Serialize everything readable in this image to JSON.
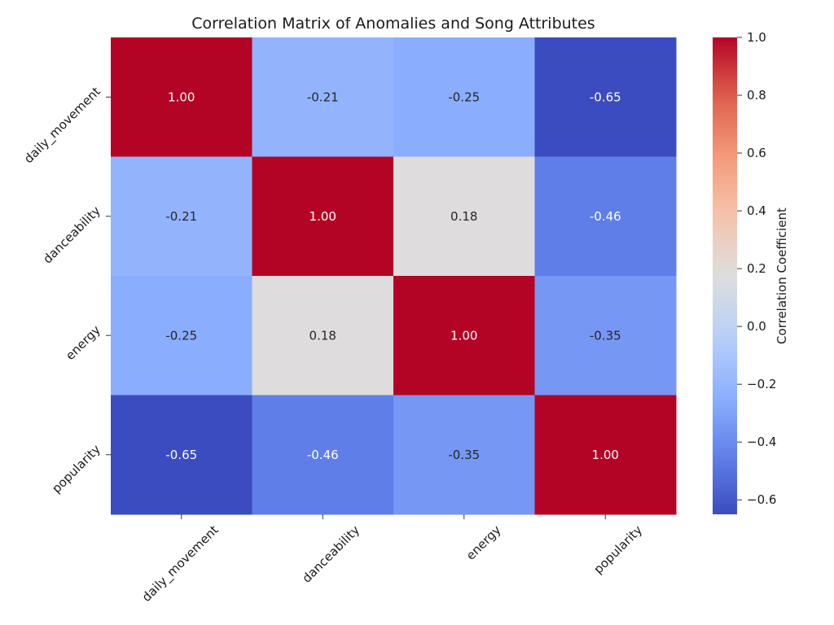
{
  "chart_data": {
    "type": "heatmap",
    "title": "Correlation Matrix of Anomalies and Song Attributes",
    "rows": [
      "daily_movement",
      "danceability",
      "energy",
      "popularity"
    ],
    "columns": [
      "daily_movement",
      "danceability",
      "energy",
      "popularity"
    ],
    "values": [
      [
        1.0,
        -0.21,
        -0.25,
        -0.65
      ],
      [
        -0.21,
        1.0,
        0.18,
        -0.46
      ],
      [
        -0.25,
        0.18,
        1.0,
        -0.35
      ],
      [
        -0.65,
        -0.46,
        -0.35,
        1.0
      ]
    ],
    "annotations": [
      [
        "1.00",
        "-0.21",
        "-0.25",
        "-0.65"
      ],
      [
        "-0.21",
        "1.00",
        "0.18",
        "-0.46"
      ],
      [
        "-0.25",
        "0.18",
        "1.00",
        "-0.35"
      ],
      [
        "-0.65",
        "-0.46",
        "-0.35",
        "1.00"
      ]
    ],
    "colormap": "coolwarm",
    "vmin": -0.65,
    "vmax": 1.0,
    "colorbar": {
      "label": "Correlation Coefficient",
      "ticks": [
        1.0,
        0.8,
        0.6,
        0.4,
        0.2,
        0.0,
        -0.2,
        -0.4,
        -0.6
      ],
      "tick_labels": [
        "1.0",
        "0.8",
        "0.6",
        "0.4",
        "0.2",
        "0.0",
        "−0.2",
        "−0.4",
        "−0.6"
      ]
    }
  }
}
